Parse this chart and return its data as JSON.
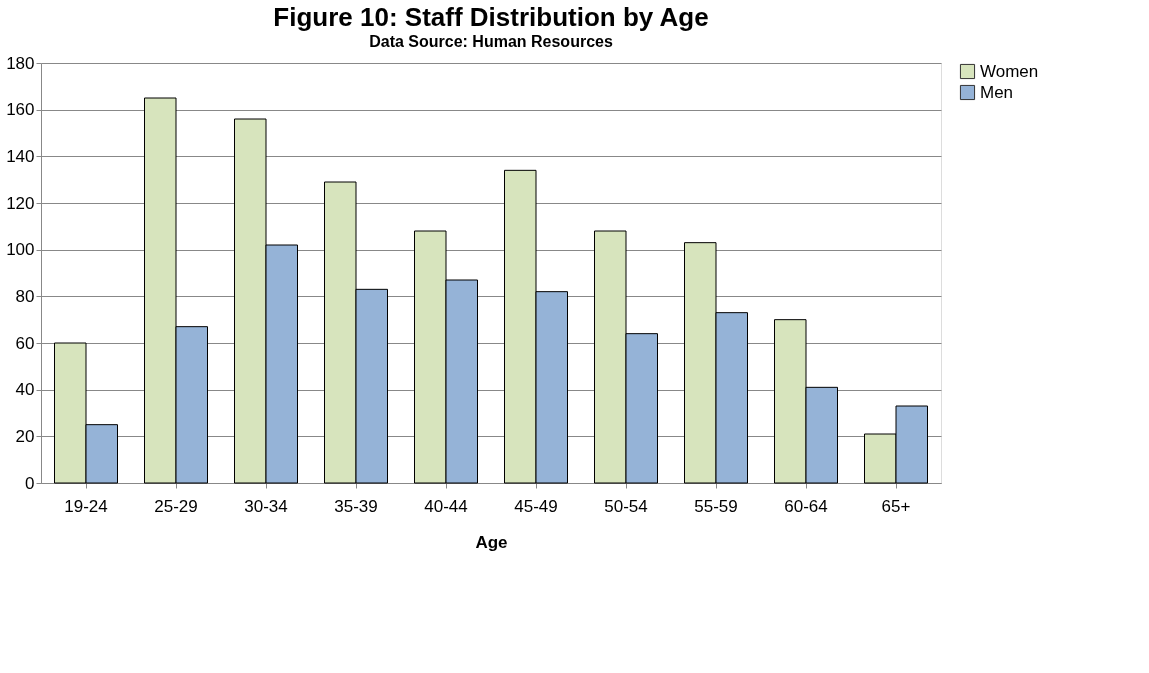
{
  "chart_data": {
    "type": "bar",
    "title": "Figure 10: Staff Distribution by Age",
    "subtitle": "Data Source: Human Resources",
    "xlabel": "Age",
    "categories": [
      "19-24",
      "25-29",
      "30-34",
      "35-39",
      "40-44",
      "45-49",
      "50-54",
      "55-59",
      "60-64",
      "65+"
    ],
    "series": [
      {
        "name": "Women",
        "color": "#d7e4bd",
        "values": [
          60,
          165,
          156,
          129,
          108,
          134,
          108,
          103,
          70,
          21
        ]
      },
      {
        "name": "Men",
        "color": "#95b3d7",
        "values": [
          25,
          67,
          102,
          83,
          87,
          82,
          64,
          73,
          41,
          33
        ]
      }
    ],
    "ylim": [
      0,
      180
    ],
    "yticks": [
      0,
      20,
      40,
      60,
      80,
      100,
      120,
      140,
      160,
      180
    ],
    "grid": "y",
    "legend": "right"
  }
}
